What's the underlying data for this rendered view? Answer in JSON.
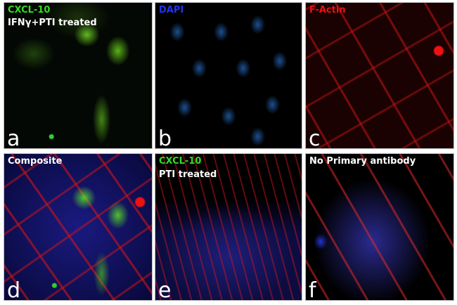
{
  "panels": [
    {
      "letter": "a",
      "label_line1": "CXCL-10",
      "label_line2": "IFNγ+PTI treated",
      "label_line1_color": "#33dd22",
      "label_line2_color": "#ffffff"
    },
    {
      "letter": "b",
      "label_line1": "DAPI",
      "label_line1_color": "#2233ee"
    },
    {
      "letter": "c",
      "label_line1": "F-Actin",
      "label_line1_color": "#ee1111"
    },
    {
      "letter": "d",
      "label_line1": "Composite",
      "label_line1_color": "#ffffff"
    },
    {
      "letter": "e",
      "label_line1": "CXCL-10",
      "label_line2": "PTI treated",
      "label_line1_color": "#33dd22",
      "label_line2_color": "#ffffff"
    },
    {
      "letter": "f",
      "label_line1": "No Primary antibody",
      "label_line1_color": "#ffffff"
    }
  ]
}
